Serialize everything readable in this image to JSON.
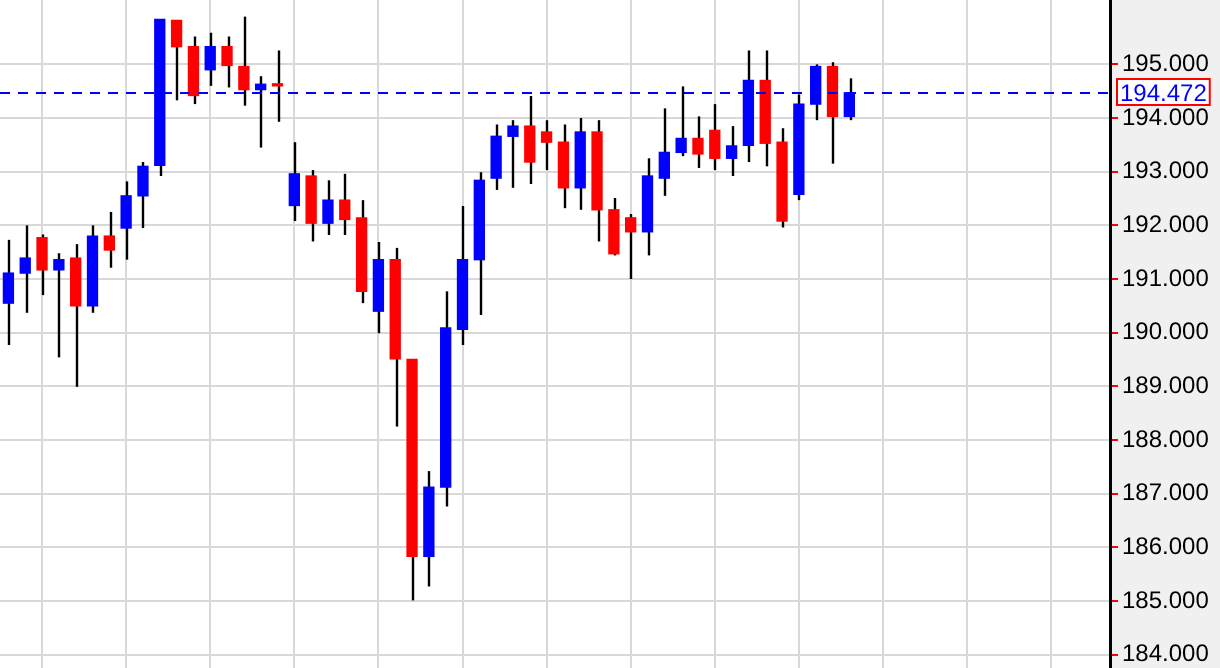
{
  "chart_data": {
    "type": "candlestick",
    "categories": [
      null,
      null,
      null,
      null,
      null,
      null,
      null,
      null,
      null,
      null,
      null,
      null,
      null,
      null,
      null,
      null,
      null,
      null,
      null,
      null,
      null,
      null,
      null,
      null,
      null,
      null,
      null,
      null,
      null,
      null,
      null,
      null,
      null,
      null,
      null,
      null,
      null,
      null,
      null,
      null,
      null,
      null,
      null,
      null,
      null,
      null,
      null,
      null,
      null,
      null,
      null,
      null,
      null,
      null,
      null,
      null,
      null,
      null,
      null,
      null,
      null,
      null,
      null,
      null,
      null,
      null
    ],
    "ohlc": [
      [
        190.55,
        191.73,
        189.77,
        191.11
      ],
      [
        191.11,
        192.0,
        190.37,
        191.39
      ],
      [
        191.77,
        191.83,
        190.7,
        191.17
      ],
      [
        191.17,
        191.48,
        189.54,
        191.36
      ],
      [
        191.39,
        191.65,
        188.99,
        190.5
      ],
      [
        190.5,
        192.0,
        190.37,
        191.8
      ],
      [
        191.8,
        192.25,
        191.21,
        191.54
      ],
      [
        191.95,
        192.82,
        191.36,
        192.55
      ],
      [
        192.55,
        193.18,
        191.95,
        193.1
      ],
      [
        193.12,
        195.84,
        192.92,
        195.84
      ],
      [
        195.82,
        195.82,
        194.33,
        195.33
      ],
      [
        195.33,
        195.52,
        194.26,
        194.42
      ],
      [
        194.9,
        195.59,
        194.6,
        195.33
      ],
      [
        195.33,
        195.52,
        194.57,
        194.98
      ],
      [
        194.96,
        195.89,
        194.23,
        194.53
      ],
      [
        194.53,
        194.78,
        193.45,
        194.63
      ],
      [
        194.63,
        195.26,
        193.93,
        194.6
      ],
      [
        192.37,
        193.55,
        192.08,
        192.96
      ],
      [
        192.92,
        193.03,
        191.7,
        192.04
      ],
      [
        192.04,
        192.84,
        191.82,
        192.47
      ],
      [
        192.47,
        192.96,
        191.82,
        192.11
      ],
      [
        192.14,
        192.47,
        190.55,
        190.77
      ],
      [
        190.4,
        191.69,
        189.99,
        191.36
      ],
      [
        191.36,
        191.58,
        188.25,
        189.51
      ],
      [
        189.5,
        189.5,
        185.01,
        185.83
      ],
      [
        185.83,
        187.42,
        185.27,
        187.12
      ],
      [
        187.12,
        190.77,
        186.76,
        190.09
      ],
      [
        190.06,
        192.36,
        189.77,
        191.36
      ],
      [
        191.36,
        192.99,
        190.33,
        192.84
      ],
      [
        192.88,
        193.88,
        192.66,
        193.66
      ],
      [
        193.66,
        193.96,
        192.7,
        193.85
      ],
      [
        193.85,
        194.41,
        192.77,
        193.18
      ],
      [
        193.74,
        193.96,
        193.03,
        193.55
      ],
      [
        193.55,
        193.88,
        192.32,
        192.7
      ],
      [
        192.7,
        194.0,
        192.29,
        193.74
      ],
      [
        193.74,
        193.96,
        191.7,
        192.29
      ],
      [
        192.29,
        192.51,
        191.44,
        191.47
      ],
      [
        192.14,
        192.21,
        191.0,
        191.88
      ],
      [
        191.88,
        193.25,
        191.44,
        192.92
      ],
      [
        192.88,
        194.18,
        192.55,
        193.36
      ],
      [
        193.36,
        194.59,
        193.29,
        193.62
      ],
      [
        193.62,
        194.03,
        193.07,
        193.33
      ],
      [
        193.77,
        194.26,
        193.03,
        193.25
      ],
      [
        193.25,
        193.85,
        192.92,
        193.48
      ],
      [
        193.49,
        195.26,
        193.18,
        194.7
      ],
      [
        194.7,
        195.26,
        193.1,
        193.53
      ],
      [
        193.55,
        193.81,
        191.96,
        192.08
      ],
      [
        192.58,
        194.44,
        192.47,
        194.26
      ],
      [
        194.26,
        195.0,
        193.96,
        194.96
      ],
      [
        194.96,
        195.04,
        193.15,
        194.03
      ],
      [
        194.03,
        194.74,
        193.96,
        194.47
      ],
      null,
      null,
      null,
      null,
      null,
      null,
      null,
      null,
      null,
      null,
      null,
      null,
      null,
      null,
      null
    ],
    "colors": [
      "#0000ff",
      "#0000ff",
      "#ff0000",
      "#0000ff",
      "#ff0000",
      "#0000ff",
      "#ff0000",
      "#0000ff",
      "#0000ff",
      "#0000ff",
      "#ff0000",
      "#ff0000",
      "#0000ff",
      "#ff0000",
      "#ff0000",
      "#0000ff",
      "#ff0000",
      "#0000ff",
      "#ff0000",
      "#0000ff",
      "#ff0000",
      "#ff0000",
      "#0000ff",
      "#ff0000",
      "#ff0000",
      "#0000ff",
      "#0000ff",
      "#0000ff",
      "#0000ff",
      "#0000ff",
      "#0000ff",
      "#ff0000",
      "#ff0000",
      "#ff0000",
      "#0000ff",
      "#ff0000",
      "#ff0000",
      "#ff0000",
      "#0000ff",
      "#0000ff",
      "#0000ff",
      "#ff0000",
      "#ff0000",
      "#0000ff",
      "#0000ff",
      "#ff0000",
      "#ff0000",
      "#0000ff",
      "#0000ff",
      "#ff0000",
      "#0000ff",
      null,
      null,
      null,
      null,
      null,
      null,
      null,
      null,
      null,
      null,
      null,
      null,
      null,
      null,
      null
    ],
    "ylim": [
      183.75,
      196.2
    ],
    "yticks": [
      {
        "value": 184,
        "label": "184.000"
      },
      {
        "value": 185,
        "label": "185.000"
      },
      {
        "value": 186,
        "label": "186.000"
      },
      {
        "value": 187,
        "label": "187.000"
      },
      {
        "value": 188,
        "label": "188.000"
      },
      {
        "value": 189,
        "label": "189.000"
      },
      {
        "value": 190,
        "label": "190.000"
      },
      {
        "value": 191,
        "label": "191.000"
      },
      {
        "value": 192,
        "label": "192.000"
      },
      {
        "value": 193,
        "label": "193.000"
      },
      {
        "value": 194,
        "label": "194.000"
      },
      {
        "value": 195,
        "label": "195.000"
      }
    ],
    "ref_lines": [
      {
        "axis": "y",
        "value": 194.472,
        "label": "194.472",
        "color": "#0000ff",
        "line_style": "dashed"
      }
    ],
    "grid": true,
    "tick_labels": "y"
  }
}
